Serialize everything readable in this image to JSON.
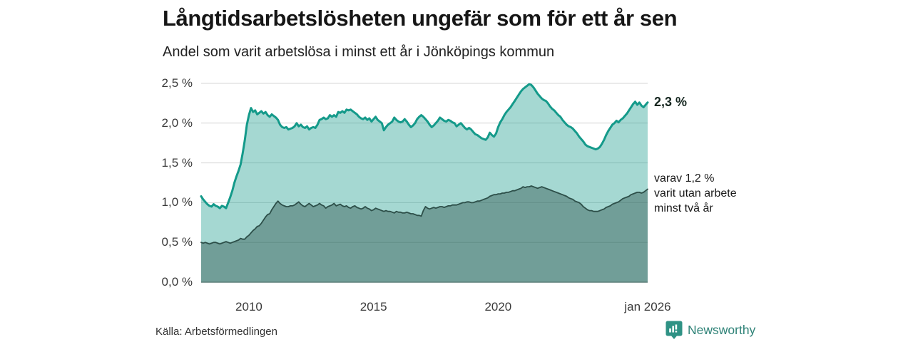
{
  "header": {
    "title": "Långtidsarbetslösheten ungefär som för ett år sen",
    "subtitle": "Andel som varit arbetslösa i minst ett år i Jönköpings kommun"
  },
  "annotations": {
    "end_value": "2,3 %",
    "note_lines": [
      "varav 1,2 %",
      "varit utan arbete",
      "minst två år"
    ]
  },
  "footer": {
    "source": "Källa: Arbetsförmedlingen",
    "brand": "Newsworthy"
  },
  "colors": {
    "line_primary": "#149a8a",
    "fill_primary": "rgba(19,153,138,0.38)",
    "line_secondary": "#2d4f49",
    "fill_secondary": "rgba(47,85,78,0.44)",
    "gridline": "#d6d6d6",
    "baseline": "#5d7f78",
    "brand_teal": "#2e8277"
  },
  "chart_data": {
    "type": "area",
    "title": "Långtidsarbetslösheten ungefär som för ett år sen",
    "subtitle": "Andel som varit arbetslösa i minst ett år i Jönköpings kommun",
    "unit": "%",
    "grid": true,
    "legend": "none (direct end labels)",
    "ylim": [
      0,
      2.5
    ],
    "xlim": [
      2008.083,
      2026.0
    ],
    "x_frequency": "monthly (feb 2008 – jan 2026)",
    "y_ticks": [
      {
        "label": "0,0 %",
        "value": 0.0
      },
      {
        "label": "0,5 %",
        "value": 0.5
      },
      {
        "label": "1,0 %",
        "value": 1.0
      },
      {
        "label": "1,5 %",
        "value": 1.5
      },
      {
        "label": "2,0 %",
        "value": 2.0
      },
      {
        "label": "2,5 %",
        "value": 2.5
      }
    ],
    "x_ticks": [
      {
        "label": "2010",
        "value": 2010
      },
      {
        "label": "2015",
        "value": 2015
      },
      {
        "label": "2020",
        "value": 2020
      },
      {
        "label": "jan 2026",
        "value": 2026
      }
    ],
    "series": [
      {
        "name": "Andel arbetslösa minst ett år",
        "end_label": "2,3 %",
        "end_value": 2.3,
        "color": "#149a8a",
        "fill": "rgba(19,153,138,0.38)",
        "line_width": 3,
        "values": [
          1.08,
          1.04,
          1.01,
          0.98,
          0.96,
          0.95,
          0.98,
          0.96,
          0.95,
          0.93,
          0.96,
          0.95,
          0.93,
          1.0,
          1.07,
          1.15,
          1.25,
          1.33,
          1.4,
          1.48,
          1.62,
          1.78,
          1.98,
          2.1,
          2.19,
          2.14,
          2.16,
          2.11,
          2.13,
          2.15,
          2.12,
          2.14,
          2.1,
          2.08,
          2.11,
          2.09,
          2.07,
          2.04,
          1.98,
          1.95,
          1.94,
          1.95,
          1.92,
          1.93,
          1.94,
          1.96,
          2.0,
          1.96,
          1.98,
          1.95,
          1.94,
          1.96,
          1.92,
          1.94,
          1.95,
          1.94,
          1.98,
          2.04,
          2.05,
          2.07,
          2.05,
          2.06,
          2.1,
          2.08,
          2.1,
          2.08,
          2.14,
          2.13,
          2.15,
          2.13,
          2.17,
          2.16,
          2.17,
          2.15,
          2.13,
          2.11,
          2.08,
          2.06,
          2.05,
          2.07,
          2.04,
          2.06,
          2.02,
          2.05,
          2.08,
          2.04,
          2.02,
          2.0,
          1.91,
          1.95,
          1.98,
          2.0,
          2.02,
          2.07,
          2.04,
          2.02,
          2.01,
          2.02,
          2.05,
          2.02,
          1.98,
          1.95,
          1.97,
          2.0,
          2.05,
          2.08,
          2.1,
          2.08,
          2.05,
          2.02,
          1.98,
          1.95,
          1.97,
          2.0,
          2.03,
          2.07,
          2.05,
          2.03,
          2.02,
          2.04,
          2.03,
          2.01,
          2.0,
          1.96,
          1.98,
          2.0,
          1.97,
          1.94,
          1.92,
          1.94,
          1.92,
          1.89,
          1.86,
          1.85,
          1.83,
          1.81,
          1.8,
          1.79,
          1.82,
          1.88,
          1.85,
          1.83,
          1.87,
          1.95,
          2.01,
          2.05,
          2.1,
          2.14,
          2.17,
          2.2,
          2.24,
          2.28,
          2.32,
          2.36,
          2.4,
          2.43,
          2.45,
          2.47,
          2.49,
          2.48,
          2.45,
          2.41,
          2.37,
          2.34,
          2.31,
          2.29,
          2.28,
          2.25,
          2.21,
          2.18,
          2.16,
          2.13,
          2.1,
          2.08,
          2.04,
          2.01,
          1.98,
          1.96,
          1.95,
          1.93,
          1.9,
          1.87,
          1.83,
          1.8,
          1.77,
          1.73,
          1.71,
          1.7,
          1.69,
          1.68,
          1.67,
          1.68,
          1.7,
          1.74,
          1.79,
          1.85,
          1.9,
          1.94,
          1.98,
          2.0,
          2.03,
          2.01,
          2.04,
          2.06,
          2.09,
          2.12,
          2.16,
          2.2,
          2.24,
          2.27,
          2.23,
          2.26,
          2.22,
          2.2,
          2.23,
          2.26
        ]
      },
      {
        "name": "varav utan arbete minst två år",
        "end_label": "varav 1,2 % varit utan arbete minst två år",
        "end_value": 1.2,
        "color": "#2d4f49",
        "fill": "rgba(47,85,78,0.44)",
        "line_width": 1.8,
        "values": [
          0.5,
          0.49,
          0.5,
          0.49,
          0.48,
          0.49,
          0.5,
          0.5,
          0.49,
          0.48,
          0.49,
          0.5,
          0.51,
          0.5,
          0.49,
          0.5,
          0.51,
          0.52,
          0.53,
          0.55,
          0.54,
          0.54,
          0.57,
          0.59,
          0.62,
          0.65,
          0.67,
          0.7,
          0.71,
          0.74,
          0.78,
          0.82,
          0.85,
          0.86,
          0.91,
          0.95,
          0.99,
          1.02,
          0.99,
          0.97,
          0.96,
          0.95,
          0.95,
          0.96,
          0.96,
          0.97,
          0.99,
          1.01,
          0.98,
          0.96,
          0.95,
          0.97,
          0.99,
          0.97,
          0.95,
          0.96,
          0.97,
          0.99,
          0.97,
          0.96,
          0.93,
          0.95,
          0.96,
          0.97,
          0.99,
          0.96,
          0.97,
          0.98,
          0.96,
          0.95,
          0.96,
          0.94,
          0.93,
          0.95,
          0.96,
          0.94,
          0.93,
          0.92,
          0.93,
          0.95,
          0.93,
          0.92,
          0.9,
          0.91,
          0.93,
          0.92,
          0.91,
          0.9,
          0.89,
          0.9,
          0.89,
          0.89,
          0.88,
          0.87,
          0.89,
          0.88,
          0.88,
          0.87,
          0.87,
          0.88,
          0.87,
          0.86,
          0.86,
          0.85,
          0.84,
          0.84,
          0.83,
          0.9,
          0.95,
          0.93,
          0.92,
          0.93,
          0.94,
          0.93,
          0.94,
          0.95,
          0.95,
          0.94,
          0.95,
          0.96,
          0.96,
          0.97,
          0.97,
          0.97,
          0.98,
          0.99,
          1.0,
          1.0,
          1.01,
          1.01,
          1.0,
          1.0,
          1.01,
          1.02,
          1.02,
          1.03,
          1.04,
          1.05,
          1.06,
          1.08,
          1.09,
          1.1,
          1.1,
          1.11,
          1.11,
          1.12,
          1.12,
          1.13,
          1.13,
          1.14,
          1.15,
          1.15,
          1.16,
          1.17,
          1.18,
          1.2,
          1.19,
          1.2,
          1.2,
          1.21,
          1.2,
          1.19,
          1.18,
          1.19,
          1.2,
          1.19,
          1.18,
          1.17,
          1.16,
          1.15,
          1.14,
          1.13,
          1.12,
          1.11,
          1.1,
          1.09,
          1.08,
          1.06,
          1.05,
          1.04,
          1.02,
          1.01,
          1.0,
          0.98,
          0.95,
          0.93,
          0.91,
          0.9,
          0.9,
          0.89,
          0.89,
          0.89,
          0.9,
          0.91,
          0.92,
          0.94,
          0.95,
          0.96,
          0.98,
          0.99,
          1.0,
          1.01,
          1.03,
          1.05,
          1.06,
          1.07,
          1.08,
          1.1,
          1.11,
          1.12,
          1.13,
          1.13,
          1.12,
          1.13,
          1.15,
          1.17
        ]
      }
    ]
  }
}
